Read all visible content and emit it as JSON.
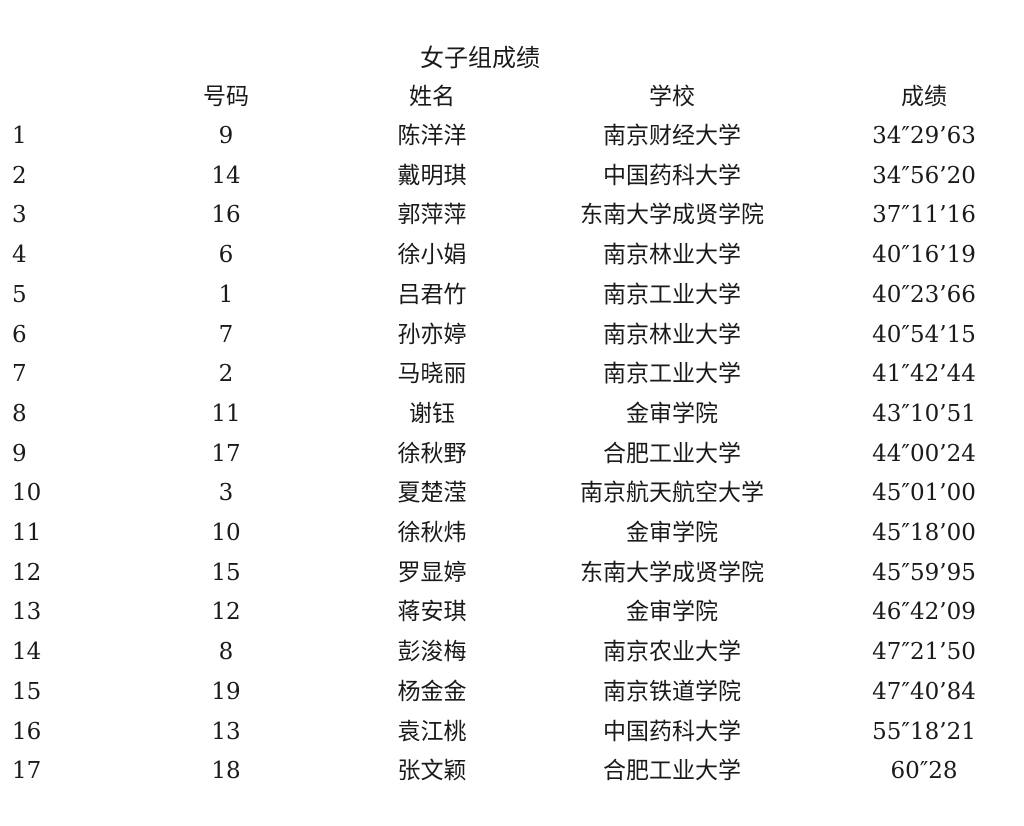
{
  "title": "女子组成绩",
  "headers": {
    "number": "号码",
    "name": "姓名",
    "school": "学校",
    "time": "成绩"
  },
  "rows": [
    {
      "rank": "1",
      "number": "9",
      "name": "陈洋洋",
      "school": "南京财经大学",
      "time": "34″29’63"
    },
    {
      "rank": "2",
      "number": "14",
      "name": "戴明琪",
      "school": "中国药科大学",
      "time": "34″56’20"
    },
    {
      "rank": "3",
      "number": "16",
      "name": "郭萍萍",
      "school": "东南大学成贤学院",
      "time": "37″11’16"
    },
    {
      "rank": "4",
      "number": "6",
      "name": "徐小娟",
      "school": "南京林业大学",
      "time": "40″16’19"
    },
    {
      "rank": "5",
      "number": "1",
      "name": "吕君竹",
      "school": "南京工业大学",
      "time": "40″23’66"
    },
    {
      "rank": "6",
      "number": "7",
      "name": "孙亦婷",
      "school": "南京林业大学",
      "time": "40″54’15"
    },
    {
      "rank": "7",
      "number": "2",
      "name": "马晓丽",
      "school": "南京工业大学",
      "time": "41″42’44"
    },
    {
      "rank": "8",
      "number": "11",
      "name": "谢钰",
      "school": "金审学院",
      "time": "43″10’51"
    },
    {
      "rank": "9",
      "number": "17",
      "name": "徐秋野",
      "school": "合肥工业大学",
      "time": "44″00’24"
    },
    {
      "rank": "10",
      "number": "3",
      "name": "夏楚滢",
      "school": "南京航天航空大学",
      "time": "45″01’00"
    },
    {
      "rank": "11",
      "number": "10",
      "name": "徐秋炜",
      "school": "金审学院",
      "time": "45″18’00"
    },
    {
      "rank": "12",
      "number": "15",
      "name": "罗显婷",
      "school": "东南大学成贤学院",
      "time": "45″59’95"
    },
    {
      "rank": "13",
      "number": "12",
      "name": "蒋安琪",
      "school": "金审学院",
      "time": "46″42’09"
    },
    {
      "rank": "14",
      "number": "8",
      "name": "彭浚梅",
      "school": "南京农业大学",
      "time": "47″21’50"
    },
    {
      "rank": "15",
      "number": "19",
      "name": "杨金金",
      "school": "南京铁道学院",
      "time": "47″40’84"
    },
    {
      "rank": "16",
      "number": "13",
      "name": "袁江桃",
      "school": "中国药科大学",
      "time": "55″18’21"
    },
    {
      "rank": "17",
      "number": "18",
      "name": "张文颖",
      "school": "合肥工业大学",
      "time": "60″28"
    }
  ]
}
